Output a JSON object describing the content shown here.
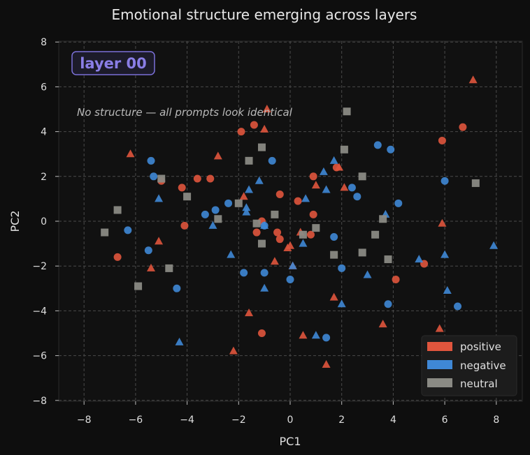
{
  "chart_data": {
    "type": "scatter",
    "title": "Emotional structure emerging across layers",
    "xlabel": "PC1",
    "ylabel": "PC2",
    "xlim": [
      -9,
      9
    ],
    "ylim": [
      -8,
      8
    ],
    "x_ticks": [
      -8,
      -6,
      -4,
      -2,
      0,
      2,
      4,
      6,
      8
    ],
    "y_ticks": [
      -8,
      -6,
      -4,
      -2,
      0,
      2,
      4,
      6,
      8
    ],
    "tick_labels_x": [
      "−8",
      "−6",
      "−4",
      "−2",
      "0",
      "2",
      "4",
      "6",
      "8"
    ],
    "tick_labels_y": [
      "−8",
      "−6",
      "−4",
      "−2",
      "0",
      "2",
      "4",
      "6",
      "8"
    ],
    "grid": true,
    "legend_position": "bottom-right",
    "annotations": {
      "layer_badge": "layer 00",
      "note": "No structure — all prompts look identical"
    },
    "series": [
      {
        "name": "positive",
        "color": "#e0553d",
        "marker": "mixed",
        "circles": [
          [
            -1.9,
            4.0
          ],
          [
            -1.4,
            4.3
          ],
          [
            6.7,
            4.2
          ],
          [
            5.9,
            3.6
          ],
          [
            -5.0,
            1.8
          ],
          [
            -3.6,
            1.9
          ],
          [
            -3.1,
            1.9
          ],
          [
            -4.2,
            1.5
          ],
          [
            0.9,
            2.0
          ],
          [
            -0.4,
            1.2
          ],
          [
            0.3,
            0.9
          ],
          [
            0.9,
            0.3
          ],
          [
            -1.1,
            0.0
          ],
          [
            -1.3,
            -0.5
          ],
          [
            -0.5,
            -0.5
          ],
          [
            -0.4,
            -0.8
          ],
          [
            0.8,
            -0.6
          ],
          [
            -4.1,
            -0.2
          ],
          [
            -6.7,
            -1.6
          ],
          [
            5.2,
            -1.9
          ],
          [
            4.1,
            -2.6
          ],
          [
            -1.1,
            -5.0
          ],
          [
            1.8,
            2.4
          ]
        ],
        "triangles": [
          [
            7.1,
            6.3
          ],
          [
            -0.9,
            5.0
          ],
          [
            -1.0,
            4.1
          ],
          [
            -6.2,
            3.0
          ],
          [
            -2.8,
            2.9
          ],
          [
            1.9,
            2.4
          ],
          [
            2.1,
            1.5
          ],
          [
            1.0,
            1.6
          ],
          [
            -1.8,
            1.1
          ],
          [
            0.4,
            -0.5
          ],
          [
            0.0,
            -1.1
          ],
          [
            -0.1,
            -1.2
          ],
          [
            -0.6,
            -1.8
          ],
          [
            -5.1,
            -0.9
          ],
          [
            -5.4,
            -2.1
          ],
          [
            5.9,
            -0.1
          ],
          [
            0.1,
            -2.0
          ],
          [
            1.7,
            -3.4
          ],
          [
            -1.6,
            -4.1
          ],
          [
            3.6,
            -4.6
          ],
          [
            5.8,
            -4.8
          ],
          [
            0.5,
            -5.1
          ],
          [
            -2.2,
            -5.8
          ],
          [
            1.4,
            -6.4
          ]
        ]
      },
      {
        "name": "negative",
        "color": "#3f88d6",
        "marker": "mixed",
        "circles": [
          [
            3.4,
            3.4
          ],
          [
            3.9,
            3.2
          ],
          [
            -5.4,
            2.7
          ],
          [
            -0.7,
            2.7
          ],
          [
            -5.3,
            2.0
          ],
          [
            6.0,
            1.8
          ],
          [
            2.4,
            1.5
          ],
          [
            2.6,
            1.1
          ],
          [
            4.2,
            0.8
          ],
          [
            -2.4,
            0.8
          ],
          [
            -2.9,
            0.5
          ],
          [
            -3.3,
            0.3
          ],
          [
            -1.0,
            -0.2
          ],
          [
            -6.3,
            -0.4
          ],
          [
            1.7,
            -0.7
          ],
          [
            -5.5,
            -1.3
          ],
          [
            2.0,
            -2.1
          ],
          [
            -1.8,
            -2.3
          ],
          [
            -1.0,
            -2.3
          ],
          [
            0.0,
            -2.6
          ],
          [
            -4.4,
            -3.0
          ],
          [
            3.8,
            -3.7
          ],
          [
            6.5,
            -3.8
          ],
          [
            1.4,
            -5.2
          ]
        ],
        "triangles": [
          [
            1.7,
            2.7
          ],
          [
            1.3,
            2.2
          ],
          [
            -1.2,
            1.8
          ],
          [
            -1.6,
            1.4
          ],
          [
            1.4,
            1.4
          ],
          [
            -5.1,
            1.0
          ],
          [
            0.6,
            1.0
          ],
          [
            -1.7,
            0.6
          ],
          [
            -1.7,
            0.4
          ],
          [
            3.7,
            0.3
          ],
          [
            -3.0,
            -0.2
          ],
          [
            -1.0,
            -0.2
          ],
          [
            0.5,
            -1.0
          ],
          [
            7.9,
            -1.1
          ],
          [
            -2.3,
            -1.5
          ],
          [
            6.0,
            -1.5
          ],
          [
            5.0,
            -1.7
          ],
          [
            0.1,
            -2.0
          ],
          [
            3.0,
            -2.4
          ],
          [
            -1.0,
            -3.0
          ],
          [
            6.1,
            -3.1
          ],
          [
            2.0,
            -3.7
          ],
          [
            1.0,
            -5.1
          ],
          [
            -4.3,
            -5.4
          ]
        ]
      },
      {
        "name": "neutral",
        "color": "#8a8a84",
        "marker": "square",
        "squares": [
          [
            2.2,
            4.9
          ],
          [
            -1.1,
            3.3
          ],
          [
            2.1,
            3.2
          ],
          [
            -1.6,
            2.7
          ],
          [
            2.8,
            2.0
          ],
          [
            -5.0,
            1.9
          ],
          [
            7.2,
            1.7
          ],
          [
            -4.0,
            1.1
          ],
          [
            -2.0,
            0.8
          ],
          [
            -6.7,
            0.5
          ],
          [
            -0.6,
            0.3
          ],
          [
            -2.8,
            0.1
          ],
          [
            3.6,
            0.1
          ],
          [
            -1.3,
            -0.1
          ],
          [
            1.0,
            -0.3
          ],
          [
            -7.2,
            -0.5
          ],
          [
            3.3,
            -0.6
          ],
          [
            0.5,
            -0.6
          ],
          [
            -1.1,
            -1.0
          ],
          [
            1.7,
            -1.5
          ],
          [
            2.8,
            -1.4
          ],
          [
            3.8,
            -1.7
          ],
          [
            -4.7,
            -2.1
          ],
          [
            -5.9,
            -2.9
          ]
        ]
      }
    ]
  }
}
